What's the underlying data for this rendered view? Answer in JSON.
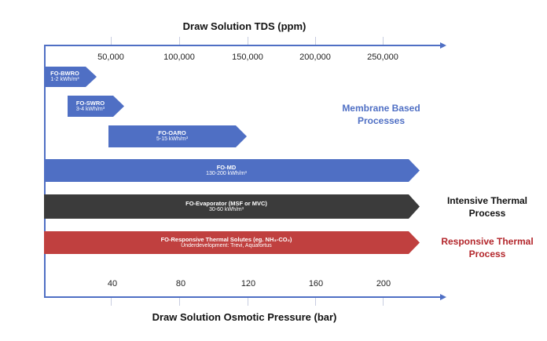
{
  "top_axis": {
    "title": "Draw Solution TDS (ppm)",
    "ticks": [
      "50,000",
      "100,000",
      "150,000",
      "200,000",
      "250,000"
    ]
  },
  "bottom_axis": {
    "title": "Draw Solution Osmotic Pressure (bar)",
    "ticks": [
      "40",
      "80",
      "120",
      "160",
      "200"
    ]
  },
  "bars": [
    {
      "name": "FO-BWRO",
      "energy": "1-2 kWh/m³",
      "color": "#4f6fc4"
    },
    {
      "name": "FO-SWRO",
      "energy": "3-4 kWh/m³",
      "color": "#4f6fc4"
    },
    {
      "name": "FO-OARO",
      "energy": "5-15 kWh/m³",
      "color": "#4f6fc4"
    },
    {
      "name": "FO-MD",
      "energy": "130-200 kWh/m³",
      "color": "#4f6fc4"
    },
    {
      "name": "FO-Evaporator (MSF or MVC)",
      "energy": "30-60 kWh/m³",
      "color": "#3b3b3b"
    },
    {
      "name": "FO-Responsive Thermal Solutes (eg. NH₃-CO₂)",
      "energy": "Underdevelopment: Trevi, Aquafortus",
      "color": "#c0403f"
    }
  ],
  "categories": [
    {
      "label": "Membrane Based Processes",
      "color": "#4f6fc4"
    },
    {
      "label": "Intensive Thermal Process",
      "color": "#111111"
    },
    {
      "label": "Responsive Thermal Process",
      "color": "#b3262b"
    }
  ]
}
